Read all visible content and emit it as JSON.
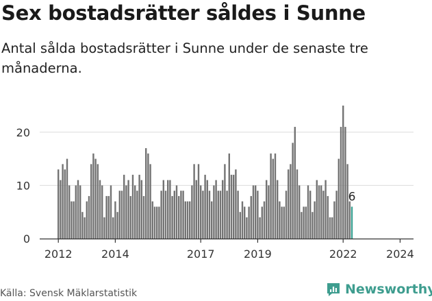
{
  "header": {
    "title": "Sex bostadsrätter såldes i Sunne",
    "subtitle": "Antal sålda bostadsrätter i Sunne under de senaste tre månaderna."
  },
  "footer": {
    "source": "Källa: Svensk Mäklarstatistik",
    "brand": "Newsworthy"
  },
  "colors": {
    "bar": "#737373",
    "highlight": "#3aa192",
    "grid": "#dcdcdc",
    "axis": "#333333",
    "brand": "#3e9d8f"
  },
  "chart_data": {
    "type": "bar",
    "title": "Sex bostadsrätter såldes i Sunne",
    "xlabel": "",
    "ylabel": "",
    "ylim": [
      0,
      25
    ],
    "yticks": [
      0,
      10,
      20
    ],
    "xticks": [
      {
        "label": "2012",
        "index": 0
      },
      {
        "label": "2014",
        "index": 26
      },
      {
        "label": "2017",
        "index": 65
      },
      {
        "label": "2019",
        "index": 91
      },
      {
        "label": "2022",
        "index": 130
      },
      {
        "label": "2024",
        "index": 156
      }
    ],
    "highlight_label": "6",
    "values": [
      13,
      11,
      14,
      13,
      15,
      10,
      7,
      7,
      10,
      11,
      10,
      5,
      4,
      7,
      8,
      14,
      16,
      15,
      14,
      11,
      10,
      4,
      8,
      8,
      10,
      4,
      7,
      5,
      9,
      9,
      12,
      10,
      11,
      8,
      12,
      10,
      9,
      12,
      11,
      8,
      17,
      16,
      14,
      7,
      6,
      6,
      6,
      9,
      11,
      9,
      11,
      11,
      8,
      9,
      10,
      8,
      9,
      9,
      7,
      7,
      7,
      10,
      14,
      11,
      14,
      10,
      9,
      12,
      11,
      9,
      7,
      10,
      11,
      9,
      9,
      11,
      14,
      9,
      16,
      12,
      12,
      13,
      9,
      5,
      7,
      6,
      4,
      6,
      8,
      10,
      10,
      9,
      4,
      6,
      7,
      11,
      10,
      16,
      15,
      16,
      11,
      7,
      6,
      6,
      9,
      13,
      14,
      18,
      21,
      13,
      10,
      5,
      6,
      6,
      10,
      9,
      5,
      7,
      11,
      10,
      10,
      9,
      11,
      8,
      4,
      4,
      7,
      9,
      15,
      21,
      25,
      21,
      14,
      7,
      6
    ],
    "highlight_last": true
  }
}
